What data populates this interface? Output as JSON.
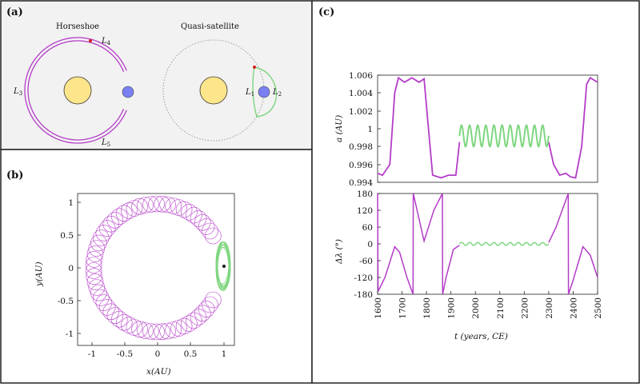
{
  "panels": {
    "a": {
      "label": "(a)",
      "horseshoe_title": "Horseshoe",
      "quasi_title": "Quasi-satellite",
      "points": {
        "L3": "L",
        "L3_sub": "3",
        "L4": "L",
        "L4_sub": "4",
        "L5": "L",
        "L5_sub": "5",
        "L1": "L",
        "L1_sub": "1",
        "L2": "L",
        "L2_sub": "2"
      }
    },
    "b": {
      "label": "(b)",
      "xlabel": "x(AU)",
      "ylabel": "y(AU)",
      "xticks": [
        "-1",
        "-0.5",
        "0",
        "0.5",
        "1"
      ],
      "yticks": [
        "1",
        "0.5",
        "0",
        "-0.5",
        "-1"
      ]
    },
    "c": {
      "label": "(c)",
      "top_ylabel": "a (AU)",
      "bottom_ylabel": "Δλ (°)",
      "xlabel": "t (years, CE)",
      "top_yticks": [
        "1.006",
        "1.004",
        "1.002",
        "1",
        "0.998",
        "0.996",
        "0.994"
      ],
      "bottom_yticks": [
        "180",
        "120",
        "60",
        "0",
        "-60",
        "-120",
        "-180"
      ],
      "xticks": [
        "1600",
        "1700",
        "1800",
        "1900",
        "2000",
        "2100",
        "2200",
        "2300",
        "2400",
        "2500"
      ]
    }
  },
  "colors": {
    "horseshoe": "#b43cc8",
    "quasi": "#7fd67f",
    "sun": "#fce58a",
    "earth": "#7a7ff2",
    "marker": "#d42020",
    "frame": "#222222"
  }
}
